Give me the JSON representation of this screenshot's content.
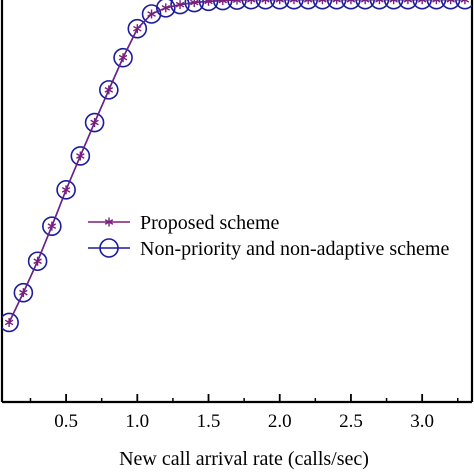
{
  "chart_data": {
    "type": "line",
    "xlabel": "New call arrival rate (calls/sec)",
    "ylabel": "",
    "xlim": [
      0.05,
      3.35
    ],
    "ylim": [
      0.0,
      1.0
    ],
    "x_ticks": [
      {
        "value": 0.5,
        "label": "0.5"
      },
      {
        "value": 1.0,
        "label": "1.0"
      },
      {
        "value": 1.5,
        "label": "1.5"
      },
      {
        "value": 2.0,
        "label": "2.0"
      },
      {
        "value": 2.5,
        "label": "2.5"
      },
      {
        "value": 3.0,
        "label": "3.0"
      }
    ],
    "grid": false,
    "legend_position": "center-right",
    "x": [
      0.1,
      0.2,
      0.3,
      0.4,
      0.5,
      0.6,
      0.7,
      0.8,
      0.9,
      1.0,
      1.1,
      1.2,
      1.3,
      1.4,
      1.5,
      1.6,
      1.7,
      1.8,
      1.9,
      2.0,
      2.1,
      2.2,
      2.3,
      2.4,
      2.5,
      2.6,
      2.7,
      2.8,
      2.9,
      3.0,
      3.1,
      3.2,
      3.3
    ],
    "series": [
      {
        "name": "Proposed scheme",
        "color": "#7b1f7b",
        "marker": "asterisk",
        "values": [
          0.195,
          0.268,
          0.345,
          0.431,
          0.52,
          0.603,
          0.685,
          0.765,
          0.844,
          0.915,
          0.951,
          0.966,
          0.974,
          0.979,
          0.982,
          0.984,
          0.985,
          0.986,
          0.986,
          0.986,
          0.986,
          0.986,
          0.986,
          0.986,
          0.986,
          0.986,
          0.986,
          0.986,
          0.986,
          0.986,
          0.986,
          0.986,
          0.986
        ]
      },
      {
        "name": "Non-priority and non-adaptive scheme",
        "color": "#1c1c9c",
        "marker": "circle",
        "values": [
          0.195,
          0.268,
          0.345,
          0.431,
          0.52,
          0.603,
          0.685,
          0.765,
          0.844,
          0.915,
          0.951,
          0.966,
          0.974,
          0.979,
          0.982,
          0.984,
          0.985,
          0.986,
          0.986,
          0.986,
          0.986,
          0.986,
          0.986,
          0.986,
          0.986,
          0.986,
          0.986,
          0.986,
          0.986,
          0.986,
          0.986,
          0.986,
          0.986
        ]
      }
    ]
  }
}
